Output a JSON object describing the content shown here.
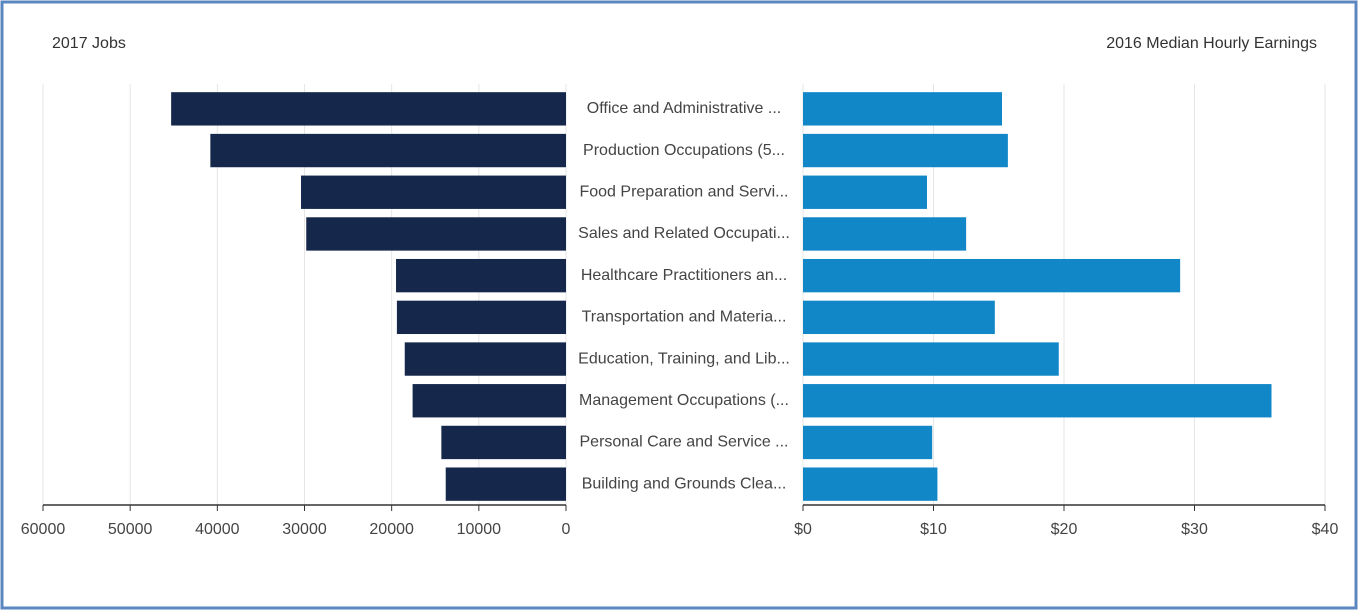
{
  "chart_data": {
    "type": "butterfly",
    "categories": [
      "Office and Administrative ...",
      "Production Occupations (5...",
      "Food Preparation and Servi...",
      "Sales and Related Occupati...",
      "Healthcare Practitioners an...",
      "Transportation and Materia...",
      "Education, Training, and Lib...",
      "Management Occupations (...",
      "Personal Care and Service ...",
      "Building and Grounds Clea..."
    ],
    "series": [
      {
        "name": "2017 Jobs",
        "color": "#15284b",
        "axis": "x",
        "values": [
          45300,
          40800,
          30400,
          29800,
          19500,
          19400,
          18500,
          17600,
          14300,
          13800
        ]
      },
      {
        "name": "2016 Median Hourly Earnings",
        "color": "#1187c8",
        "axis": "x2",
        "values": [
          15.25,
          15.7,
          9.5,
          12.5,
          28.9,
          14.7,
          19.6,
          35.9,
          9.9,
          10.3
        ]
      }
    ],
    "xlim": [
      0,
      60000
    ],
    "x_reversed": true,
    "xticks": [
      60000,
      50000,
      40000,
      30000,
      20000,
      10000,
      0
    ],
    "x2lim": [
      0,
      40
    ],
    "x2ticks": [
      {
        "value": 0,
        "label": "$0"
      },
      {
        "value": 10,
        "label": "$10"
      },
      {
        "value": 20,
        "label": "$20"
      },
      {
        "value": 30,
        "label": "$30"
      },
      {
        "value": 40,
        "label": "$40"
      }
    ],
    "grid": true
  }
}
